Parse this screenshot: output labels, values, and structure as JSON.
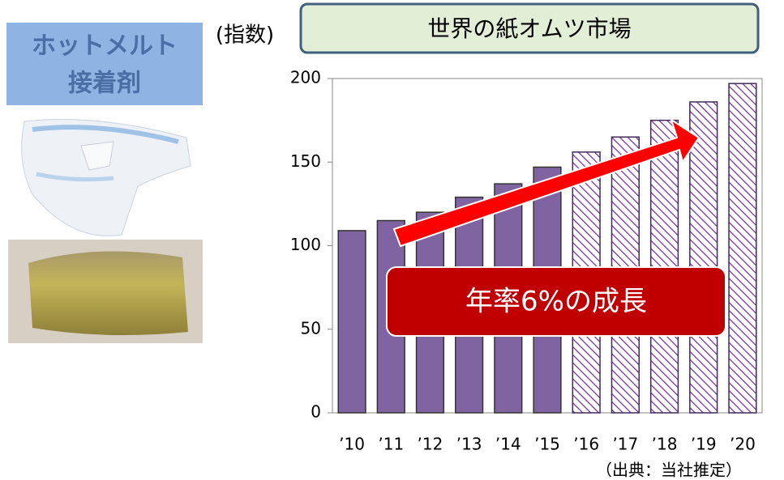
{
  "chart_data": {
    "type": "bar",
    "title": "世界の紙オムツ市場",
    "y_label": "(指数)",
    "side_label": [
      "ホットメルト",
      "接着剤"
    ],
    "annotation": "年率6%の成長",
    "source": "（出典：当社推定）",
    "categories": [
      "’10",
      "’11",
      "’12",
      "’13",
      "’14",
      "’15",
      "’16",
      "’17",
      "’18",
      "’19",
      "’20"
    ],
    "values": [
      109,
      115,
      120,
      129,
      137,
      147,
      156,
      165,
      175,
      186,
      197
    ],
    "bar_styles": [
      "solid",
      "solid",
      "solid",
      "solid",
      "solid",
      "solid",
      "hatched",
      "hatched",
      "hatched",
      "hatched",
      "hatched"
    ],
    "color": "#8064a2",
    "ylim": [
      0,
      200
    ],
    "yticks": [
      0,
      50,
      100,
      150,
      200
    ],
    "grid": false
  }
}
